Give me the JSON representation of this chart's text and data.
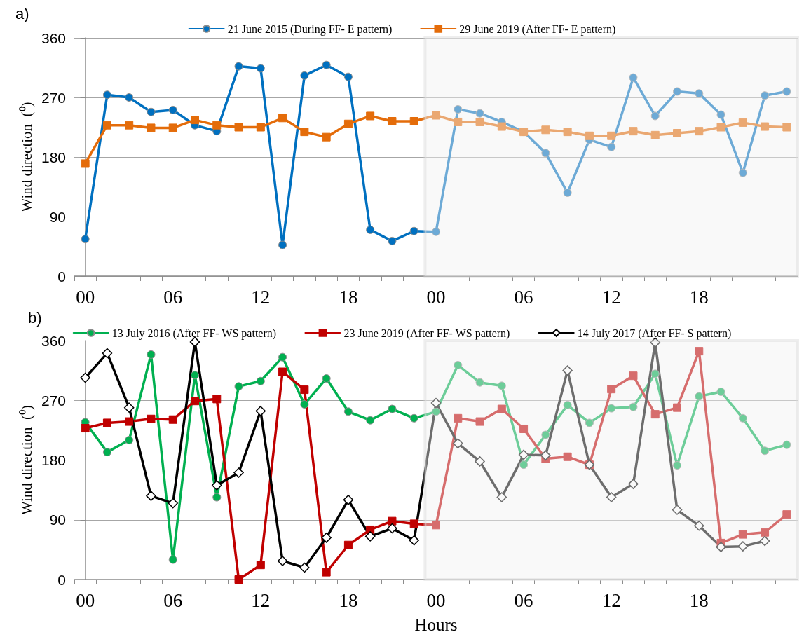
{
  "chart_data": [
    {
      "type": "line",
      "ylabel": "Wind direction  (⁰)",
      "annotations": [
        "a)"
      ],
      "x": [
        0,
        1.5,
        3,
        4.5,
        6,
        7.5,
        9,
        10.5,
        12,
        13.5,
        15,
        16.5,
        18,
        19.5,
        21,
        22.5,
        24,
        25.5,
        27,
        28.5,
        30,
        31.5,
        33,
        34.5,
        36,
        37.5,
        39,
        40.5,
        42,
        43.5,
        45,
        46.5,
        48
      ],
      "xlim": [
        -0.75,
        48.75
      ],
      "xticks": [
        {
          "value": 0,
          "label": "00"
        },
        {
          "value": 6,
          "label": "06"
        },
        {
          "value": 12,
          "label": "12"
        },
        {
          "value": 18,
          "label": "18"
        },
        {
          "value": 24,
          "label": "00"
        },
        {
          "value": 30,
          "label": "06"
        },
        {
          "value": 36,
          "label": "12"
        },
        {
          "value": 42,
          "label": "18"
        },
        {
          "value": -0.75,
          "label": null
        },
        {
          "value": 0.75,
          "label": null
        },
        {
          "value": 2.25,
          "label": null
        },
        {
          "value": 3.75,
          "label": null
        },
        {
          "value": 5.25,
          "label": null
        },
        {
          "value": 6.75,
          "label": null
        },
        {
          "value": 8.25,
          "label": null
        },
        {
          "value": 9.75,
          "label": null
        },
        {
          "value": 11.25,
          "label": null
        },
        {
          "value": 12.75,
          "label": null
        },
        {
          "value": 14.25,
          "label": null
        },
        {
          "value": 15.75,
          "label": null
        },
        {
          "value": 17.25,
          "label": null
        },
        {
          "value": 18.75,
          "label": null
        },
        {
          "value": 20.25,
          "label": null
        },
        {
          "value": 21.75,
          "label": null
        },
        {
          "value": 23.25,
          "label": null
        },
        {
          "value": 24.75,
          "label": null
        },
        {
          "value": 26.25,
          "label": null
        },
        {
          "value": 27.75,
          "label": null
        },
        {
          "value": 29.25,
          "label": null
        },
        {
          "value": 30.75,
          "label": null
        },
        {
          "value": 32.25,
          "label": null
        },
        {
          "value": 33.75,
          "label": null
        },
        {
          "value": 35.25,
          "label": null
        },
        {
          "value": 36.75,
          "label": null
        },
        {
          "value": 38.25,
          "label": null
        },
        {
          "value": 39.75,
          "label": null
        },
        {
          "value": 41.25,
          "label": null
        },
        {
          "value": 42.75,
          "label": null
        },
        {
          "value": 44.25,
          "label": null
        },
        {
          "value": 45.75,
          "label": null
        },
        {
          "value": 47.25,
          "label": null
        },
        {
          "value": 48.75,
          "label": null
        }
      ],
      "ylim": [
        0,
        360
      ],
      "yticks": [
        0,
        90,
        180,
        270,
        360
      ],
      "grid": "y",
      "legend": "top",
      "bands": [
        {
          "axis": "x",
          "from": 23.25,
          "to": 48.75,
          "color": "#f2f2f2"
        }
      ],
      "series": [
        {
          "name": "21 June 2015 (During FF- E pattern)",
          "color": "#0070c0",
          "marker": "circle",
          "values": [
            56,
            274,
            270,
            248,
            251,
            228,
            219,
            317,
            314,
            47,
            303,
            319,
            301,
            70,
            53,
            68,
            67,
            252,
            246,
            233,
            218,
            186,
            126,
            206,
            195,
            300,
            242,
            279,
            276,
            244,
            156,
            273,
            279
          ]
        },
        {
          "name": "29 June 2019 (After FF- E pattern)",
          "color": "#e46c0a",
          "marker": "square",
          "values": [
            170,
            228,
            228,
            224,
            224,
            236,
            228,
            225,
            225,
            239,
            218,
            210,
            230,
            242,
            234,
            234,
            243,
            233,
            233,
            226,
            218,
            221,
            218,
            212,
            212,
            219,
            213,
            216,
            219,
            225,
            232,
            226,
            225
          ]
        }
      ]
    },
    {
      "type": "line",
      "ylabel": "Wind direction  (⁰)",
      "xlabel": "Hours",
      "annotations": [
        "b)"
      ],
      "x": [
        0,
        1.5,
        3,
        4.5,
        6,
        7.5,
        9,
        10.5,
        12,
        13.5,
        15,
        16.5,
        18,
        19.5,
        21,
        22.5,
        24,
        25.5,
        27,
        28.5,
        30,
        31.5,
        33,
        34.5,
        36,
        37.5,
        39,
        40.5,
        42,
        43.5,
        45,
        46.5,
        48
      ],
      "xlim": [
        -0.75,
        48.75
      ],
      "xticks": [
        {
          "value": 0,
          "label": "00"
        },
        {
          "value": 6,
          "label": "06"
        },
        {
          "value": 12,
          "label": "12"
        },
        {
          "value": 18,
          "label": "18"
        },
        {
          "value": 24,
          "label": "00"
        },
        {
          "value": 30,
          "label": "06"
        },
        {
          "value": 36,
          "label": "12"
        },
        {
          "value": 42,
          "label": "18"
        },
        {
          "value": -0.75,
          "label": null
        },
        {
          "value": 0.75,
          "label": null
        },
        {
          "value": 2.25,
          "label": null
        },
        {
          "value": 3.75,
          "label": null
        },
        {
          "value": 5.25,
          "label": null
        },
        {
          "value": 6.75,
          "label": null
        },
        {
          "value": 8.25,
          "label": null
        },
        {
          "value": 9.75,
          "label": null
        },
        {
          "value": 11.25,
          "label": null
        },
        {
          "value": 12.75,
          "label": null
        },
        {
          "value": 14.25,
          "label": null
        },
        {
          "value": 15.75,
          "label": null
        },
        {
          "value": 17.25,
          "label": null
        },
        {
          "value": 18.75,
          "label": null
        },
        {
          "value": 20.25,
          "label": null
        },
        {
          "value": 21.75,
          "label": null
        },
        {
          "value": 23.25,
          "label": null
        },
        {
          "value": 24.75,
          "label": null
        },
        {
          "value": 26.25,
          "label": null
        },
        {
          "value": 27.75,
          "label": null
        },
        {
          "value": 29.25,
          "label": null
        },
        {
          "value": 30.75,
          "label": null
        },
        {
          "value": 32.25,
          "label": null
        },
        {
          "value": 33.75,
          "label": null
        },
        {
          "value": 35.25,
          "label": null
        },
        {
          "value": 36.75,
          "label": null
        },
        {
          "value": 38.25,
          "label": null
        },
        {
          "value": 39.75,
          "label": null
        },
        {
          "value": 41.25,
          "label": null
        },
        {
          "value": 42.75,
          "label": null
        },
        {
          "value": 44.25,
          "label": null
        },
        {
          "value": 45.75,
          "label": null
        },
        {
          "value": 47.25,
          "label": null
        },
        {
          "value": 48.75,
          "label": null
        }
      ],
      "ylim": [
        0,
        360
      ],
      "yticks": [
        0,
        90,
        180,
        270,
        360
      ],
      "grid": "y",
      "legend": "top",
      "bands": [
        {
          "axis": "x",
          "from": 23.25,
          "to": 48.75,
          "color": "#f2f2f2"
        }
      ],
      "series": [
        {
          "name": "13 July 2016 (After FF- WS pattern)",
          "color": "#00b050",
          "marker": "circle",
          "values": [
            237,
            192,
            210,
            339,
            30,
            308,
            124,
            291,
            299,
            335,
            264,
            303,
            253,
            240,
            257,
            243,
            253,
            323,
            297,
            292,
            173,
            218,
            263,
            236,
            258,
            260,
            310,
            172,
            276,
            283,
            243,
            194,
            203
          ]
        },
        {
          "name": "23 June 2019 (After FF- WS pattern)",
          "color": "#c00000",
          "marker": "square",
          "values": [
            228,
            236,
            238,
            242,
            241,
            269,
            272,
            0,
            22,
            313,
            286,
            11,
            52,
            75,
            88,
            84,
            82,
            243,
            238,
            257,
            227,
            182,
            185,
            173,
            287,
            307,
            249,
            259,
            344,
            55,
            68,
            71,
            98
          ]
        },
        {
          "name": "14 July 2017 (After FF- S pattern)",
          "color": "#000000",
          "marker": "diamond",
          "values": [
            304,
            341,
            259,
            126,
            115,
            358,
            142,
            161,
            254,
            28,
            18,
            63,
            120,
            65,
            77,
            59,
            266,
            205,
            178,
            124,
            188,
            187,
            315,
            173,
            124,
            144,
            357,
            105,
            81,
            49,
            50,
            58,
            null
          ]
        }
      ]
    }
  ]
}
